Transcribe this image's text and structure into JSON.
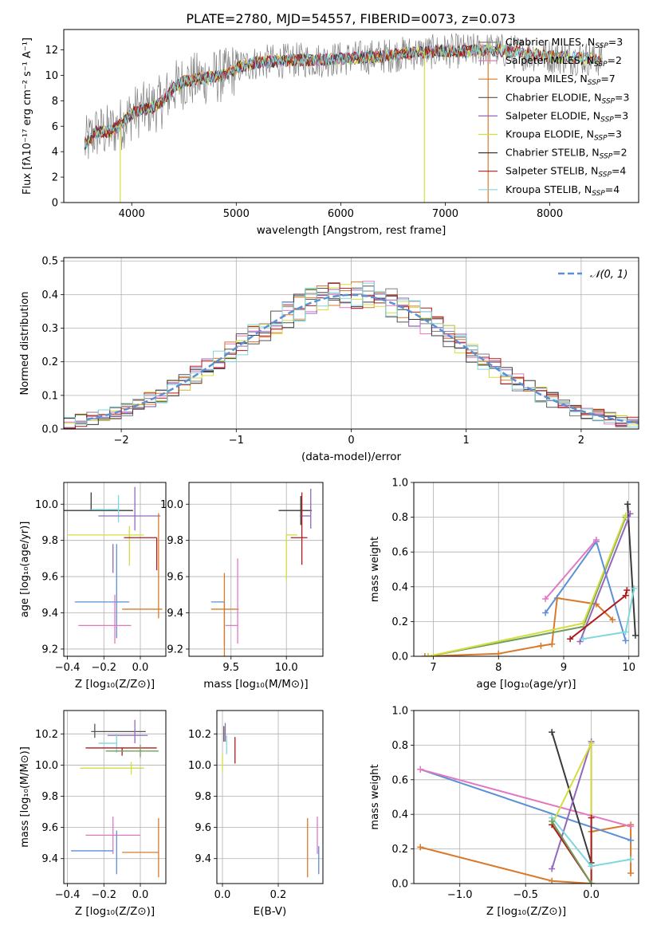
{
  "figure_title": "PLATE=2780, MJD=54557, FIBERID=0073, z=0.073",
  "series_colors": [
    "#7f7f7f",
    "#e377c2",
    "#d97a2b",
    "#555555",
    "#9467bd",
    "#d4dd3f",
    "#3a3a3a",
    "#b01a1a",
    "#7ed7dc"
  ],
  "chart_data": [
    {
      "id": "spectrum",
      "type": "line",
      "title": "PLATE=2780, MJD=54557, FIBERID=0073, z=0.073",
      "xlabel": "wavelength [Angstrom, rest frame]",
      "ylabel": "Flux [fλ10⁻¹⁷ erg cm⁻² s⁻¹ A⁻¹]",
      "xlim": [
        3350,
        8850
      ],
      "ylim": [
        0,
        13.6
      ],
      "xticks": [
        "4000",
        "5000",
        "6000",
        "7000",
        "8000"
      ],
      "yticks": [
        "0",
        "2",
        "4",
        "6",
        "8",
        "10",
        "12"
      ],
      "xtick_values": [
        4000,
        5000,
        6000,
        7000,
        8000
      ],
      "ytick_values": [
        0,
        2,
        4,
        6,
        8,
        10,
        12
      ],
      "legend_placement": "upper-right",
      "legend": [
        {
          "label": "Chabrier MILES, N",
          "sub": "SSP",
          "tail": "=3",
          "color": "#7f7f7f"
        },
        {
          "label": "Salpeter MILES, N",
          "sub": "SSP",
          "tail": "=2",
          "color": "#e377c2"
        },
        {
          "label": "Kroupa MILES, N",
          "sub": "SSP",
          "tail": "=7",
          "color": "#d97a2b"
        },
        {
          "label": "Chabrier ELODIE, N",
          "sub": "SSP",
          "tail": "=3",
          "color": "#555555"
        },
        {
          "label": "Salpeter ELODIE, N",
          "sub": "SSP",
          "tail": "=3",
          "color": "#9467bd"
        },
        {
          "label": "Kroupa ELODIE, N",
          "sub": "SSP",
          "tail": "=3",
          "color": "#d4dd3f"
        },
        {
          "label": "Chabrier STELIB, N",
          "sub": "SSP",
          "tail": "=2",
          "color": "#3a3a3a"
        },
        {
          "label": "Salpeter STELIB, N",
          "sub": "SSP",
          "tail": "=4",
          "color": "#b01a1a"
        },
        {
          "label": "Kroupa STELIB, N",
          "sub": "SSP",
          "tail": "=4",
          "color": "#7ed7dc"
        }
      ],
      "continuum": {
        "x": [
          3550,
          3650,
          3800,
          3900,
          4000,
          4100,
          4200,
          4300,
          4400,
          4500,
          4700,
          4900,
          5000,
          5200,
          5400,
          5600,
          5800,
          6000,
          6200,
          6400,
          6600,
          6800,
          7000,
          7200,
          7400,
          7600,
          7800,
          8000,
          8200,
          8400,
          8500
        ],
        "y": [
          4.5,
          5.5,
          5.6,
          6.2,
          7.0,
          7.3,
          7.5,
          8.0,
          9.0,
          9.5,
          9.8,
          10.0,
          10.6,
          11.0,
          11.1,
          11.2,
          11.2,
          11.3,
          11.4,
          11.5,
          11.7,
          11.8,
          11.9,
          11.9,
          12.0,
          11.9,
          11.7,
          11.5,
          11.4,
          11.3,
          11.2
        ],
        "note_range": [
          3550,
          8500
        ]
      }
    },
    {
      "id": "residuals",
      "type": "line",
      "xlabel": "(data-model)/error",
      "ylabel": "Normed distribution",
      "xlim": [
        -2.5,
        2.5
      ],
      "ylim": [
        0,
        0.51
      ],
      "xticks": [
        "−2",
        "−1",
        "0",
        "1",
        "2"
      ],
      "yticks": [
        "0.0",
        "0.1",
        "0.2",
        "0.3",
        "0.4",
        "0.5"
      ],
      "xtick_values": [
        -2,
        -1,
        0,
        1,
        2
      ],
      "ytick_values": [
        0,
        0.1,
        0.2,
        0.3,
        0.4,
        0.5
      ],
      "grid": true,
      "legend_label": "𝒩(0, 1)",
      "legend_placement": "upper-right",
      "normal_curve": {
        "mean": 0,
        "sigma": 1,
        "color": "#5b8fd6",
        "style": "dashed"
      }
    },
    {
      "id": "age_vs_z",
      "type": "scatter",
      "xlabel": "Z [log₁₀(Z/Z⊙)]",
      "ylabel": "age  [log₁₀(age/yr)]",
      "xlim": [
        -0.42,
        0.14
      ],
      "ylim": [
        9.16,
        10.12
      ],
      "xticks": [
        "−0.4",
        "−0.2",
        "0.0"
      ],
      "yticks": [
        "9.2",
        "9.4",
        "9.6",
        "9.8",
        "10.0"
      ],
      "xtick_values": [
        -0.4,
        -0.2,
        0.0
      ],
      "ytick_values": [
        9.2,
        9.4,
        9.6,
        9.8,
        10.0
      ],
      "grid": true,
      "errorbars": [
        {
          "x": -0.27,
          "xerr": [
            0.25,
            0.23
          ],
          "y": 9.965,
          "yerr": [
            0.0,
            0.1
          ],
          "color": "#3a3a3a"
        },
        {
          "x": -0.12,
          "xerr": [
            0.15,
            0.0
          ],
          "y": 9.97,
          "yerr": [
            0.07,
            0.08
          ],
          "color": "#7ed7dc"
        },
        {
          "x": -0.03,
          "xerr": [
            0.2,
            0.14
          ],
          "y": 9.935,
          "yerr": [
            0.08,
            0.16
          ],
          "color": "#9467bd"
        },
        {
          "x": -0.06,
          "xerr": [
            0.34,
            0.08
          ],
          "y": 9.83,
          "yerr": [
            0.17,
            0.05
          ],
          "color": "#d4dd3f"
        },
        {
          "x": 0.09,
          "xerr": [
            0.18,
            0.0
          ],
          "y": 9.815,
          "yerr": [
            0.18,
            0.0
          ],
          "color": "#b01a1a"
        },
        {
          "x": -0.15,
          "xerr": [
            0.0,
            0.0
          ],
          "y": 9.7,
          "yerr": [
            0.08,
            0.08
          ],
          "color": "#9467bd"
        },
        {
          "x": -0.13,
          "xerr": [
            0.23,
            0.07
          ],
          "y": 9.46,
          "yerr": [
            0.2,
            0.32
          ],
          "color": "#5b8fd6"
        },
        {
          "x": -0.1,
          "xerr": [
            0.0,
            0.22
          ],
          "y": 9.42,
          "yerr": [
            0.0,
            0.0
          ],
          "color": "#d97a2b"
        },
        {
          "x": 0.1,
          "xerr": [
            0.0,
            0.0
          ],
          "y": 9.68,
          "yerr": [
            0.31,
            0.27
          ],
          "color": "#d97a2b"
        },
        {
          "x": -0.14,
          "xerr": [
            0.2,
            0.09
          ],
          "y": 9.33,
          "yerr": [
            0.1,
            0.17
          ],
          "color": "#e377c2"
        }
      ]
    },
    {
      "id": "age_vs_mass",
      "type": "scatter",
      "xlabel": "mass [log₁₀(M/M⊙)]",
      "xlim": [
        9.12,
        10.33
      ],
      "ylim": [
        9.16,
        10.12
      ],
      "xticks": [
        "9.5",
        "10.0"
      ],
      "yticks": [
        "9.2",
        "9.4",
        "9.6",
        "9.8",
        "10.0"
      ],
      "xtick_values": [
        9.5,
        10.0
      ],
      "ytick_values": [
        9.2,
        9.4,
        9.6,
        9.8,
        10.0
      ],
      "grid": true,
      "errorbars": [
        {
          "x": 10.13,
          "xerr": [
            0.2,
            0.1
          ],
          "y": 9.965,
          "yerr": [
            0.08,
            0.08
          ],
          "color": "#3a3a3a"
        },
        {
          "x": 10.22,
          "xerr": [
            0.1,
            0.0
          ],
          "y": 9.935,
          "yerr": [
            0.07,
            0.15
          ],
          "color": "#9467bd"
        },
        {
          "x": 10.0,
          "xerr": [
            0.0,
            0.1
          ],
          "y": 9.83,
          "yerr": [
            0.25,
            0.0
          ],
          "color": "#d4dd3f"
        },
        {
          "x": 10.14,
          "xerr": [
            0.1,
            0.05
          ],
          "y": 9.815,
          "yerr": [
            0.15,
            0.25
          ],
          "color": "#b01a1a"
        },
        {
          "x": 9.44,
          "xerr": [
            0.12,
            0.0
          ],
          "y": 9.46,
          "yerr": [
            0.24,
            0.0
          ],
          "color": "#5b8fd6"
        },
        {
          "x": 9.44,
          "xerr": [
            0.12,
            0.13
          ],
          "y": 9.42,
          "yerr": [
            0.41,
            0.2
          ],
          "color": "#d97a2b"
        },
        {
          "x": 9.56,
          "xerr": [
            0.11,
            0.0
          ],
          "y": 9.33,
          "yerr": [
            0.1,
            0.37
          ],
          "color": "#e377c2"
        }
      ]
    },
    {
      "id": "weight_vs_age",
      "type": "line",
      "xlabel": "age  [log₁₀(age/yr)]",
      "ylabel": "mass weight",
      "xlim": [
        6.7,
        10.15
      ],
      "ylim": [
        0.0,
        1.0
      ],
      "xticks": [
        "7",
        "8",
        "9",
        "10"
      ],
      "yticks": [
        "0.0",
        "0.2",
        "0.4",
        "0.6",
        "0.8",
        "1.0"
      ],
      "xtick_values": [
        7,
        8,
        9,
        10
      ],
      "ytick_values": [
        0,
        0.2,
        0.4,
        0.6,
        0.8,
        1.0
      ],
      "grid": true,
      "series": [
        {
          "color": "#d97a2b",
          "x": [
            6.87,
            8.0,
            8.65,
            8.82,
            8.9,
            9.5,
            9.75
          ],
          "y": [
            0.0,
            0.015,
            0.06,
            0.07,
            0.335,
            0.3,
            0.21
          ]
        },
        {
          "color": "#6f9f5a",
          "x": [
            6.92,
            9.3,
            9.95
          ],
          "y": [
            0.0,
            0.17,
            0.8
          ]
        },
        {
          "color": "#d4dd3f",
          "x": [
            6.92,
            9.3,
            9.95
          ],
          "y": [
            0.0,
            0.19,
            0.81
          ]
        },
        {
          "color": "#5b8fd6",
          "x": [
            8.72,
            9.5,
            9.95
          ],
          "y": [
            0.25,
            0.66,
            0.09
          ]
        },
        {
          "color": "#e377c2",
          "x": [
            8.72,
            9.5
          ],
          "y": [
            0.33,
            0.67
          ]
        },
        {
          "color": "#3a3a3a",
          "x": [
            9.98,
            10.1
          ],
          "y": [
            0.875,
            0.12
          ]
        },
        {
          "color": "#9467bd",
          "x": [
            9.25,
            10.02
          ],
          "y": [
            0.085,
            0.82
          ]
        },
        {
          "color": "#b01a1a",
          "x": [
            9.1,
            9.95,
            9.97
          ],
          "y": [
            0.1,
            0.35,
            0.38
          ]
        },
        {
          "color": "#7ed7dc",
          "x": [
            9.3,
            9.95,
            10.08
          ],
          "y": [
            0.1,
            0.14,
            0.39
          ]
        }
      ]
    },
    {
      "id": "mass_vs_z",
      "type": "scatter",
      "xlabel": "Z [log₁₀(Z/Z⊙)]",
      "ylabel": "mass [log₁₀(M/M⊙)]",
      "xlim": [
        -0.42,
        0.14
      ],
      "ylim": [
        9.24,
        10.35
      ],
      "xticks": [
        "−0.4",
        "−0.2",
        "0.0"
      ],
      "yticks": [
        "9.4",
        "9.6",
        "9.8",
        "10.0",
        "10.2"
      ],
      "xtick_values": [
        -0.4,
        -0.2,
        0.0
      ],
      "ytick_values": [
        9.4,
        9.6,
        9.8,
        10.0,
        10.2
      ],
      "grid": true,
      "errorbars": [
        {
          "x": -0.25,
          "xerr": [
            0.02,
            0.28
          ],
          "y": 10.215,
          "yerr": [
            0.04,
            0.05
          ],
          "color": "#555555"
        },
        {
          "x": -0.03,
          "xerr": [
            0.15,
            0.07
          ],
          "y": 10.19,
          "yerr": [
            0.05,
            0.1
          ],
          "color": "#9467bd"
        },
        {
          "x": -0.13,
          "xerr": [
            0.1,
            0.0
          ],
          "y": 10.14,
          "yerr": [
            0.06,
            0.06
          ],
          "color": "#7ed7dc"
        },
        {
          "x": -0.1,
          "xerr": [
            0.2,
            0.19
          ],
          "y": 10.11,
          "yerr": [
            0.05,
            0.0
          ],
          "color": "#b01a1a"
        },
        {
          "x": 0.0,
          "xerr": [
            0.19,
            0.1
          ],
          "y": 10.09,
          "yerr": [
            0.04,
            0.04
          ],
          "color": "#6f9f5a"
        },
        {
          "x": -0.05,
          "xerr": [
            0.28,
            0.07
          ],
          "y": 9.98,
          "yerr": [
            0.04,
            0.04
          ],
          "color": "#d4dd3f"
        },
        {
          "x": -0.15,
          "xerr": [
            0.15,
            0.15
          ],
          "y": 9.55,
          "yerr": [
            0.12,
            0.12
          ],
          "color": "#e377c2"
        },
        {
          "x": -0.15,
          "xerr": [
            0.23,
            0.0
          ],
          "y": 9.45,
          "yerr": [
            0.0,
            0.0
          ],
          "color": "#5b8fd6"
        },
        {
          "x": -0.13,
          "xerr": [
            0.0,
            0.0
          ],
          "y": 9.4,
          "yerr": [
            0.1,
            0.18
          ],
          "color": "#5b8fd6"
        },
        {
          "x": 0.1,
          "xerr": [
            0.2,
            0.0
          ],
          "y": 9.44,
          "yerr": [
            0.16,
            0.22
          ],
          "color": "#d97a2b"
        }
      ]
    },
    {
      "id": "mass_vs_ebv",
      "type": "scatter",
      "xlabel": "E(B-V)",
      "xlim": [
        -0.02,
        0.36
      ],
      "ylim": [
        9.24,
        10.35
      ],
      "xticks": [
        "0.0",
        "0.2"
      ],
      "yticks": [
        "9.4",
        "9.6",
        "9.8",
        "10.0",
        "10.2"
      ],
      "xtick_values": [
        0.0,
        0.2
      ],
      "ytick_values": [
        9.4,
        9.6,
        9.8,
        10.0,
        10.2
      ],
      "grid": true,
      "errorbars": [
        {
          "x": 0.005,
          "xerr": [
            0,
            0
          ],
          "y": 10.2,
          "yerr": [
            0.05,
            0.05
          ],
          "color": "#555555"
        },
        {
          "x": 0.01,
          "xerr": [
            0,
            0
          ],
          "y": 10.21,
          "yerr": [
            0.06,
            0.06
          ],
          "color": "#9467bd"
        },
        {
          "x": 0.015,
          "xerr": [
            0,
            0
          ],
          "y": 10.15,
          "yerr": [
            0.08,
            0.04
          ],
          "color": "#7ed7dc"
        },
        {
          "x": 0.045,
          "xerr": [
            0,
            0
          ],
          "y": 10.11,
          "yerr": [
            0.1,
            0.07
          ],
          "color": "#b01a1a"
        },
        {
          "x": 0.0,
          "xerr": [
            0,
            0
          ],
          "y": 10.0,
          "yerr": [
            0.04,
            0.07
          ],
          "color": "#d4dd3f"
        },
        {
          "x": 0.305,
          "xerr": [
            0,
            0
          ],
          "y": 9.44,
          "yerr": [
            0.16,
            0.22
          ],
          "color": "#d97a2b"
        },
        {
          "x": 0.34,
          "xerr": [
            0,
            0
          ],
          "y": 9.55,
          "yerr": [
            0.12,
            0.12
          ],
          "color": "#e377c2"
        },
        {
          "x": 0.345,
          "xerr": [
            0,
            0
          ],
          "y": 9.4,
          "yerr": [
            0.1,
            0.08
          ],
          "color": "#5b8fd6"
        }
      ]
    },
    {
      "id": "weight_vs_z",
      "type": "line",
      "xlabel": "Z [log₁₀(Z/Z⊙)]",
      "ylabel": "mass weight",
      "xlim": [
        -1.35,
        0.36
      ],
      "ylim": [
        0.0,
        1.0
      ],
      "xticks": [
        "−1.0",
        "−0.5",
        "0.0"
      ],
      "yticks": [
        "0.0",
        "0.2",
        "0.4",
        "0.6",
        "0.8",
        "1.0"
      ],
      "xtick_values": [
        -1.0,
        -0.5,
        0.0
      ],
      "ytick_values": [
        0,
        0.2,
        0.4,
        0.6,
        0.8,
        1.0
      ],
      "grid": true,
      "series": [
        {
          "color": "#d97a2b",
          "x": [
            -1.3,
            -0.3,
            0.0,
            0.0,
            0.3,
            0.3
          ],
          "y": [
            0.21,
            0.015,
            0.0,
            0.3,
            0.34,
            0.06
          ]
        },
        {
          "color": "#5b8fd6",
          "x": [
            -1.3,
            0.3
          ],
          "y": [
            0.66,
            0.25
          ]
        },
        {
          "color": "#e377c2",
          "x": [
            -1.3,
            0.3
          ],
          "y": [
            0.66,
            0.33
          ]
        },
        {
          "color": "#3a3a3a",
          "x": [
            -0.3,
            0.0,
            0.0
          ],
          "y": [
            0.875,
            0.12,
            0.1
          ]
        },
        {
          "color": "#9467bd",
          "x": [
            -0.3,
            0.0,
            0.0
          ],
          "y": [
            0.085,
            0.82,
            0.1
          ]
        },
        {
          "color": "#d4dd3f",
          "x": [
            -0.3,
            0.0,
            0.0
          ],
          "y": [
            0.34,
            0.81,
            0.0
          ]
        },
        {
          "color": "#b01a1a",
          "x": [
            -0.3,
            0.0,
            0.0
          ],
          "y": [
            0.34,
            0.0,
            0.38
          ]
        },
        {
          "color": "#7ed7dc",
          "x": [
            -0.3,
            0.0,
            0.3
          ],
          "y": [
            0.38,
            0.1,
            0.14
          ]
        },
        {
          "color": "#6f9f5a",
          "x": [
            -0.3,
            0.0
          ],
          "y": [
            0.36,
            0.0
          ]
        }
      ]
    }
  ]
}
